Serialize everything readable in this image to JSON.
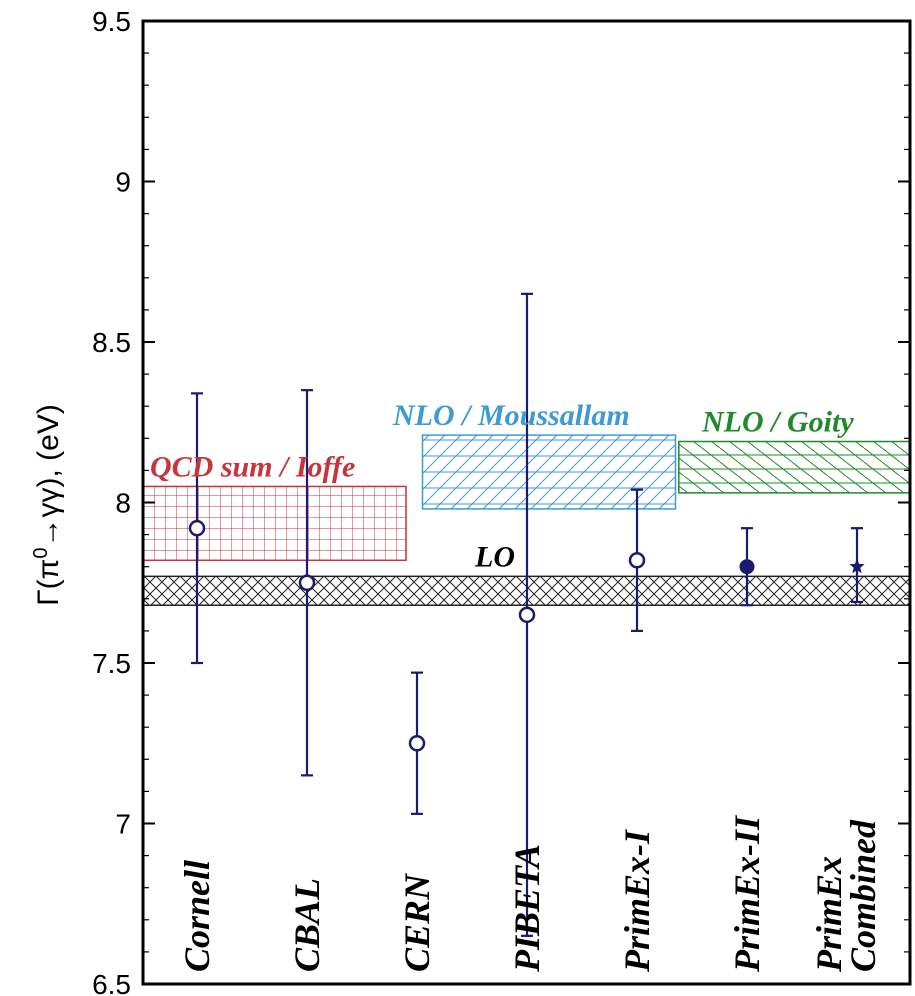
{
  "chart_data": {
    "type": "scatter",
    "ylabel_prefix": "Γ(π",
    "ylabel_sup": "0",
    "ylabel_suffix": "→γγ), (eV)",
    "ylim": [
      6.5,
      9.5
    ],
    "yticks": [
      "6.5",
      "7",
      "7.5",
      "8",
      "8.5",
      "9",
      "9.5"
    ],
    "categories": [
      {
        "label": "Cornell"
      },
      {
        "label": "CBAL"
      },
      {
        "label": "CERN"
      },
      {
        "label": "PIBETA"
      },
      {
        "label": "PrimEx-I"
      },
      {
        "label": "PrimEx-II"
      },
      {
        "label": "PrimEx",
        "label2": "Combined"
      }
    ],
    "points": [
      {
        "category": "Cornell",
        "value": 7.92,
        "low": 7.5,
        "high": 8.34,
        "marker": "open-circle"
      },
      {
        "category": "CBAL",
        "value": 7.75,
        "low": 7.15,
        "high": 8.35,
        "marker": "open-circle"
      },
      {
        "category": "CERN",
        "value": 7.25,
        "low": 7.03,
        "high": 7.47,
        "marker": "open-circle"
      },
      {
        "category": "PIBETA",
        "value": 7.65,
        "low": 6.65,
        "high": 8.65,
        "marker": "open-circle"
      },
      {
        "category": "PrimEx-I",
        "value": 7.82,
        "low": 7.6,
        "high": 8.04,
        "marker": "open-circle"
      },
      {
        "category": "PrimEx-II",
        "value": 7.8,
        "low": 7.68,
        "high": 7.92,
        "marker": "filled-circle"
      },
      {
        "category": "PrimEx Combined",
        "value": 7.8,
        "low": 7.69,
        "high": 7.92,
        "marker": "star"
      }
    ],
    "bands": [
      {
        "label": "LO",
        "y_low": 7.68,
        "y_high": 7.77,
        "x_from": -0.5,
        "x_to": 6.5,
        "color": "#222222",
        "pattern": "crosshatch-diag"
      },
      {
        "label": "QCD sum / Ioffe",
        "y_low": 7.82,
        "y_high": 8.05,
        "x_from": -0.5,
        "x_to": 1.9,
        "color": "#c8343b",
        "pattern": "grid"
      },
      {
        "label": "NLO / Moussallam",
        "y_low": 7.98,
        "y_high": 8.21,
        "x_from": 2.05,
        "x_to": 4.35,
        "color": "#3e9ad6",
        "pattern": "diag"
      },
      {
        "label": "NLO / Goity",
        "y_low": 8.03,
        "y_high": 8.19,
        "x_from": 4.38,
        "x_to": 6.5,
        "color": "#1f8a2a",
        "pattern": "diag-hatch"
      }
    ],
    "point_color": "#1a1a6e",
    "axis_color": "#000000",
    "grid": false
  }
}
